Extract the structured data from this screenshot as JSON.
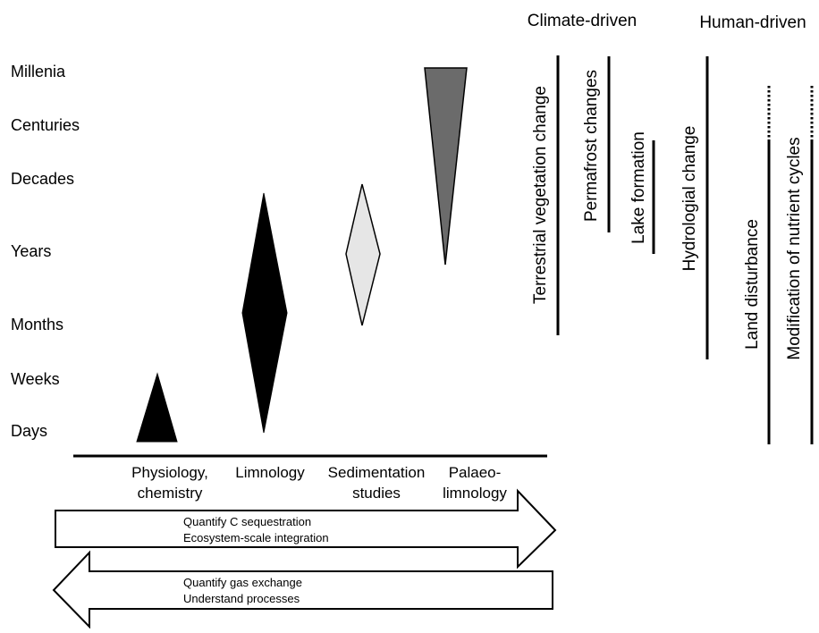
{
  "timescales": [
    "Millenia",
    "Centuries",
    "Decades",
    "Years",
    "Months",
    "Weeks",
    "Days"
  ],
  "methods": [
    {
      "lines": [
        "Physiology,",
        "chemistry"
      ],
      "fill": "#000000"
    },
    {
      "lines": [
        "Limnology"
      ],
      "fill": "#000000"
    },
    {
      "lines": [
        "Sedimentation",
        "studies"
      ],
      "fill": "#e6e6e6"
    },
    {
      "lines": [
        "Palaeo-",
        "limnology"
      ],
      "fill": "#6b6b6b"
    }
  ],
  "arrows": [
    {
      "direction": "right",
      "lines": [
        "Quantify  C sequestration",
        "Ecosystem-scale integration"
      ]
    },
    {
      "direction": "left",
      "lines": [
        "Quantify  gas exchange",
        "Understand processes"
      ]
    }
  ],
  "groups": {
    "climate": "Climate-driven",
    "human": "Human-driven"
  },
  "drivers": [
    {
      "label": "Terrestrial  vegetation change",
      "group": "climate",
      "dotted_top": false
    },
    {
      "label": "Permafrost changes",
      "group": "climate",
      "dotted_top": false
    },
    {
      "label": "Lake formation",
      "group": "climate",
      "dotted_top": false
    },
    {
      "label": "Hydrologial change",
      "group": "human",
      "dotted_top": false
    },
    {
      "label": "Land disturbance",
      "group": "human",
      "dotted_top": true
    },
    {
      "label": "Modification of nutrient cycles",
      "group": "human",
      "dotted_top": true
    }
  ]
}
